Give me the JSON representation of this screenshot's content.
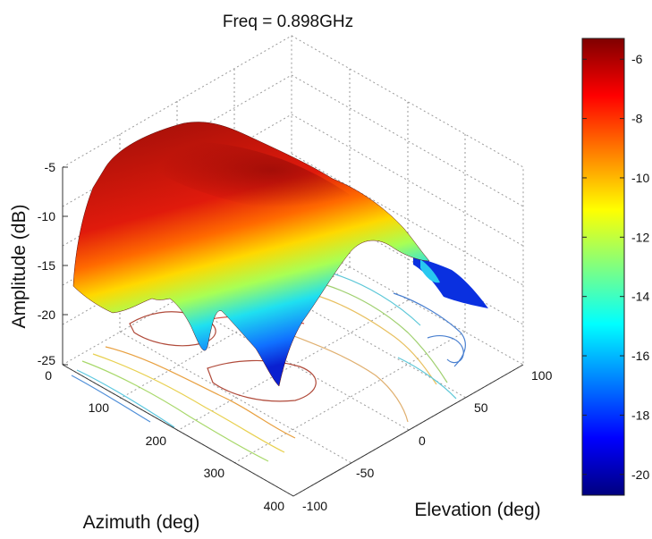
{
  "chart_data": {
    "type": "surface",
    "title": "Freq = 0.898GHz",
    "xlabel": "Azimuth (deg)",
    "ylabel": "Elevation (deg)",
    "zlabel": "Amplitude (dB)",
    "x_ticks": [
      "0",
      "100",
      "200",
      "300",
      "400"
    ],
    "y_ticks": [
      "-100",
      "-50",
      "0",
      "50",
      "100"
    ],
    "z_ticks": [
      "-5",
      "-10",
      "-15",
      "-20",
      "-25"
    ],
    "xlim": [
      0,
      400
    ],
    "ylim": [
      -100,
      100
    ],
    "zlim": [
      -25,
      -5
    ],
    "colorbar": {
      "ticks": [
        "-6",
        "-8",
        "-10",
        "-12",
        "-14",
        "-16",
        "-18",
        "-20"
      ],
      "range": [
        -20.7,
        -5.3
      ],
      "colormap": "jet"
    },
    "grid": true,
    "contour_projection": true,
    "peak_db": -6
  }
}
